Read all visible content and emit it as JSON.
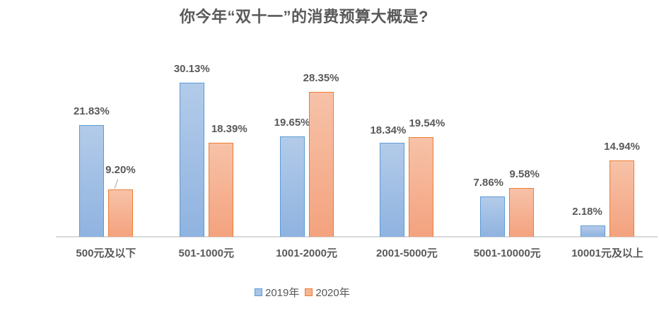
{
  "chart_data": {
    "type": "bar",
    "title": "你今年“双十一”的消费预算大概是?",
    "xlabel": "",
    "ylabel": "",
    "categories": [
      "500元及以下",
      "501-1000元",
      "1001-2000元",
      "2001-5000元",
      "5001-10000元",
      "10001元及以上"
    ],
    "series": [
      {
        "name": "2019年",
        "values": [
          21.83,
          30.13,
          19.65,
          18.34,
          7.86,
          2.18
        ],
        "labels": [
          "21.83%",
          "30.13%",
          "19.65%",
          "18.34%",
          "7.86%",
          "2.18%"
        ],
        "color": "#5b9bd5"
      },
      {
        "name": "2020年",
        "values": [
          9.2,
          18.39,
          28.35,
          19.54,
          9.58,
          14.94
        ],
        "labels": [
          "9.20%",
          "18.39%",
          "28.35%",
          "19.54%",
          "9.58%",
          "14.94%"
        ],
        "color": "#ed7d31"
      }
    ],
    "ylim": [
      0,
      35
    ],
    "grid": false,
    "legend_position": "bottom",
    "unit": "%"
  },
  "legend": {
    "items": [
      {
        "label": "2019年",
        "color": "#5b9bd5"
      },
      {
        "label": "2020年",
        "color": "#ed7d31"
      }
    ]
  }
}
